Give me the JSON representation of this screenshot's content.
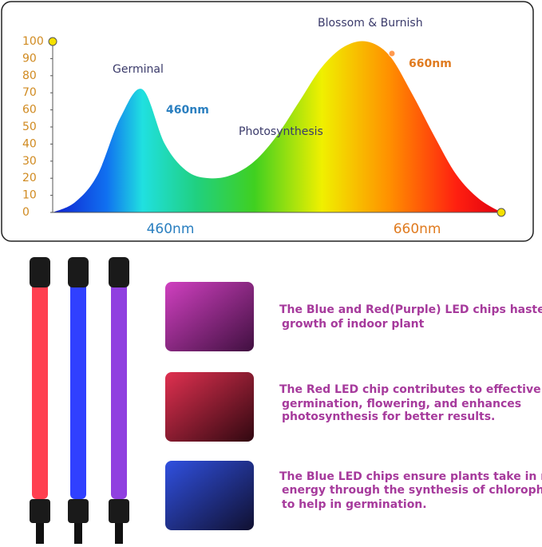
{
  "chart_data": {
    "type": "area",
    "annotations": [
      "Germinal",
      "460nm",
      "Photosynthesis",
      "Blossom & Burnish",
      "660nm"
    ],
    "categories": [
      null,
      null,
      null,
      null,
      null,
      "460nm",
      null,
      null,
      null,
      null,
      null,
      null,
      null,
      null,
      null,
      null,
      "660nm",
      null,
      null,
      null,
      null
    ],
    "values": [
      0,
      6,
      22,
      55,
      72,
      40,
      24,
      20,
      22,
      30,
      45,
      65,
      85,
      97,
      100,
      92,
      70,
      45,
      22,
      8,
      0
    ],
    "ylim": [
      0,
      100
    ],
    "yticks": [
      0,
      10,
      20,
      30,
      40,
      50,
      60,
      70,
      80,
      90,
      100
    ]
  },
  "features": [
    [
      "The Blue and Red(Purple) LED chips hastens",
      "growth of indoor plant"
    ],
    [
      "The Red LED chip contributes to effective",
      "germination, flowering, and enhances",
      "photosynthesis for better results."
    ],
    [
      "The Blue LED chips ensure plants take in more",
      "energy through the synthesis of chlorophyll",
      "to help in germination."
    ]
  ]
}
